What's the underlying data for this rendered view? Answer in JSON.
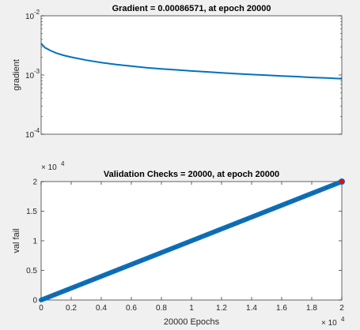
{
  "colors": {
    "figure_bg": "#f0f0f0",
    "axes_bg": "#ffffff",
    "axis": "#262626",
    "series": "#0072bd",
    "best": "#ff0000"
  },
  "chart_data": [
    {
      "type": "line",
      "title": "Gradient = 0.00086571, at epoch 20000",
      "xlabel": "",
      "ylabel": "gradient",
      "yscale": "log",
      "xlim": [
        0,
        20000
      ],
      "ylim": [
        0.0001,
        0.01
      ],
      "ytick_bases": [
        "10",
        "10",
        "10"
      ],
      "ytick_exponents": [
        "-2",
        "-3",
        "-4"
      ],
      "ytick_values": [
        0.01,
        0.001,
        0.0001
      ],
      "grid": false,
      "series": [
        {
          "x": [
            0,
            250,
            600,
            1000,
            1500,
            2000,
            3000,
            4000,
            5000,
            6000,
            7000,
            8000,
            9000,
            10000,
            11000,
            12000,
            13000,
            14000,
            15000,
            16000,
            17000,
            18000,
            19000,
            20000
          ],
          "values": [
            0.0034,
            0.0029,
            0.0026,
            0.00235,
            0.00215,
            0.002,
            0.00178,
            0.00162,
            0.0015,
            0.00141,
            0.00133,
            0.00127,
            0.00122,
            0.00117,
            0.00113,
            0.00109,
            0.00105,
            0.00102,
            0.00099,
            0.00096,
            0.00094,
            0.00091,
            0.00089,
            0.00086571
          ]
        }
      ]
    },
    {
      "type": "line",
      "title": "Validation Checks = 20000, at epoch 20000",
      "xlabel": "20000 Epochs",
      "ylabel": "val fail",
      "xlim": [
        0,
        20000
      ],
      "ylim": [
        0,
        20000
      ],
      "multiplier_base": "× 10",
      "multiplier_exp": "4",
      "xtick_labels": [
        "0",
        "0.2",
        "0.4",
        "0.6",
        "0.8",
        "1",
        "1.2",
        "1.4",
        "1.6",
        "1.8",
        "2"
      ],
      "xtick_values": [
        0,
        2000,
        4000,
        6000,
        8000,
        10000,
        12000,
        14000,
        16000,
        18000,
        20000
      ],
      "ytick_labels": [
        "0",
        "0.5",
        "1",
        "1.5",
        "2"
      ],
      "ytick_values": [
        0,
        5000,
        10000,
        15000,
        20000
      ],
      "grid": false,
      "series": [
        {
          "x": [
            0,
            20000
          ],
          "values": [
            0,
            20000
          ]
        }
      ],
      "best_point": {
        "x": 20000,
        "y": 20000
      }
    }
  ]
}
